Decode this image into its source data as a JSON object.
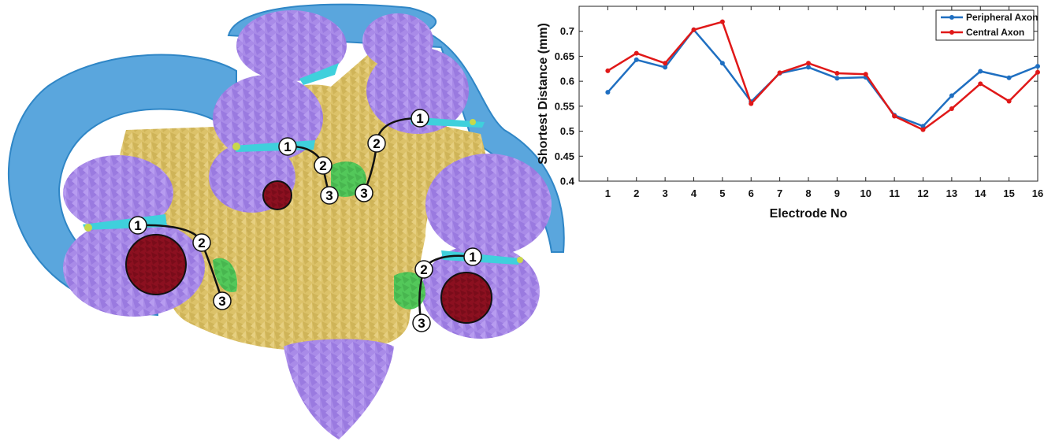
{
  "colors": {
    "fluid_blue": "#5aa6dd",
    "fluid_blue_edge": "#2f86c6",
    "tissue_purple": "#a98be8",
    "bone_gold": "#dcc269",
    "nerve_cyan": "#3fd0dc",
    "electrode_red": "#8c1020",
    "green_region": "#53c85a",
    "yellow_green": "#c8d84a",
    "peripheral_line": "#1f6fc1",
    "central_line": "#e01818"
  },
  "anatomy": {
    "markers": [
      {
        "label": "1"
      },
      {
        "label": "2"
      },
      {
        "label": "3"
      },
      {
        "label": "1"
      },
      {
        "label": "2"
      },
      {
        "label": "3"
      },
      {
        "label": "1"
      },
      {
        "label": "2"
      },
      {
        "label": "3"
      },
      {
        "label": "1"
      },
      {
        "label": "2"
      },
      {
        "label": "3"
      }
    ]
  },
  "chart_data": {
    "type": "line",
    "title": "",
    "xlabel": "Electrode No",
    "ylabel": "Shortest Distance (mm)",
    "x": [
      1,
      2,
      3,
      4,
      5,
      6,
      7,
      8,
      9,
      10,
      11,
      12,
      13,
      14,
      15,
      16
    ],
    "xticks": [
      "1",
      "2",
      "3",
      "4",
      "5",
      "6",
      "7",
      "8",
      "9",
      "10",
      "11",
      "12",
      "13",
      "14",
      "15",
      "16"
    ],
    "xlim": [
      0,
      16
    ],
    "ylim": [
      0.4,
      0.75
    ],
    "yticks": [
      "0.4",
      "0.45",
      "0.5",
      "0.55",
      "0.6",
      "0.65",
      "0.7"
    ],
    "grid": false,
    "legend_position": "top-right",
    "series": [
      {
        "name": "Peripheral Axon",
        "color": "#1f6fc1",
        "values": [
          0.578,
          0.643,
          0.628,
          0.703,
          0.636,
          0.559,
          0.616,
          0.628,
          0.606,
          0.608,
          0.532,
          0.51,
          0.571,
          0.62,
          0.607,
          0.63
        ]
      },
      {
        "name": "Central Axon",
        "color": "#e01818",
        "values": [
          0.621,
          0.656,
          0.636,
          0.703,
          0.719,
          0.555,
          0.617,
          0.636,
          0.616,
          0.614,
          0.53,
          0.503,
          0.545,
          0.595,
          0.56,
          0.618
        ]
      }
    ]
  }
}
